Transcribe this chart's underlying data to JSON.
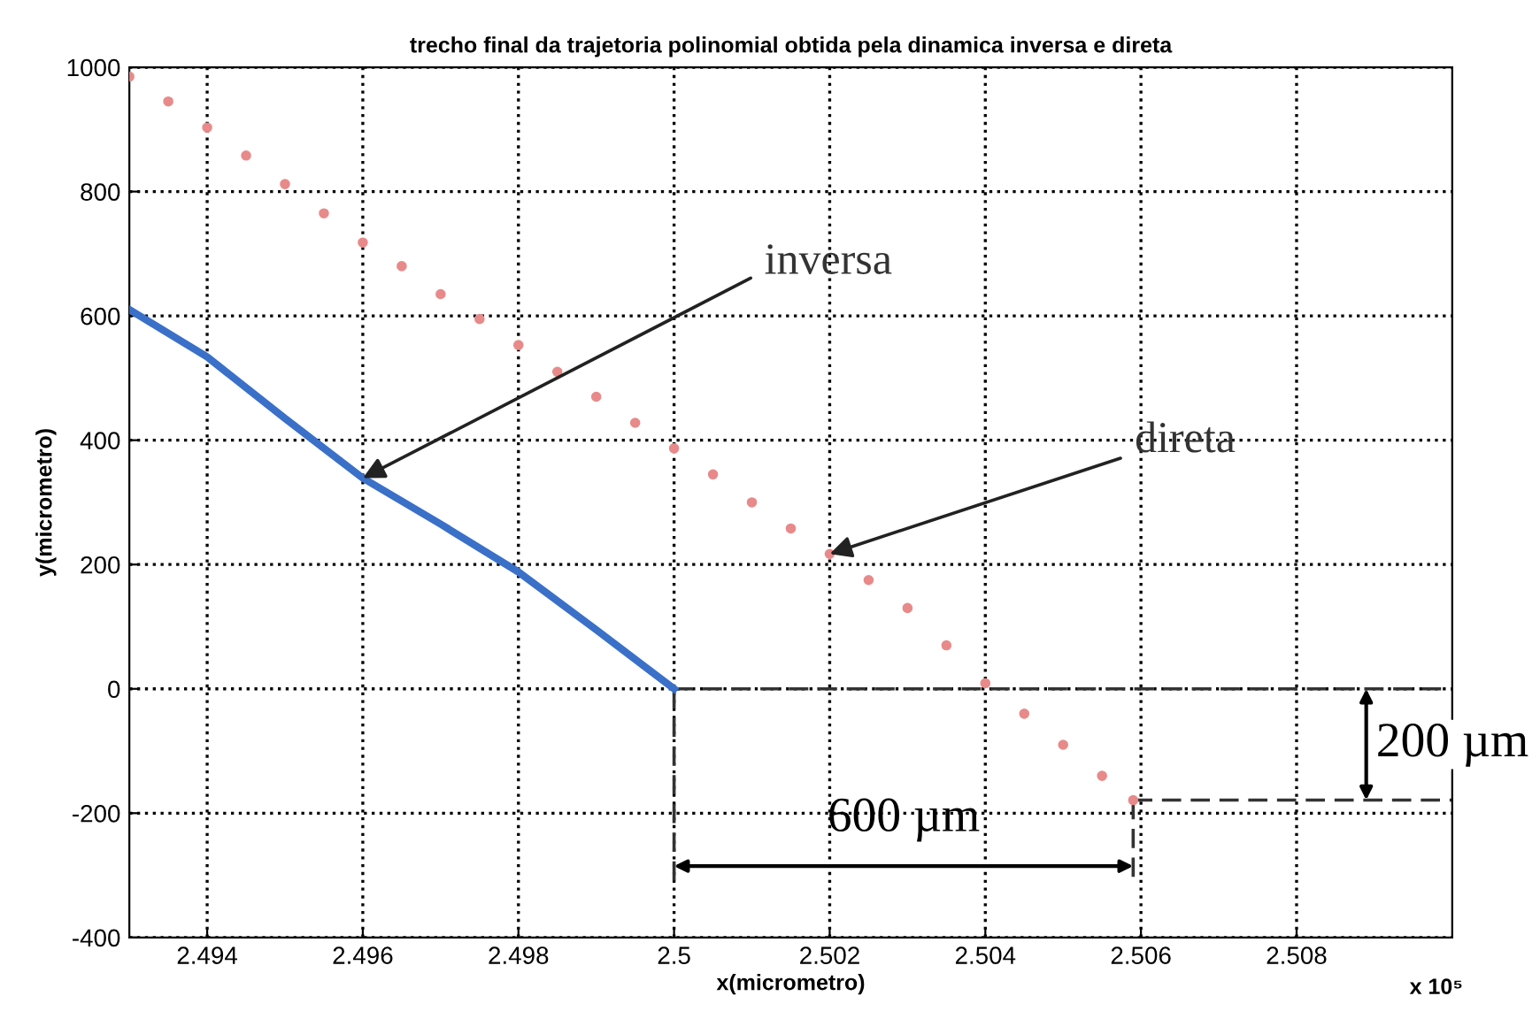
{
  "chart_data": {
    "type": "line",
    "title": "trecho final da trajetoria polinomial obtida pela dinamica inversa e direta",
    "xlabel": "x(micrometro)",
    "ylabel": "y(micrometro)",
    "xlim": [
      2.493,
      2.51
    ],
    "ylim": [
      -400,
      1000
    ],
    "xticks": [
      2.494,
      2.496,
      2.498,
      2.5,
      2.502,
      2.504,
      2.506,
      2.508
    ],
    "yticks": [
      -400,
      -200,
      0,
      200,
      400,
      600,
      800,
      1000
    ],
    "grid": true,
    "line_style": "solid",
    "series": [
      {
        "color": "#3a70c8",
        "x": [
          2.493,
          2.494,
          2.495,
          2.496,
          2.497,
          2.498,
          2.499,
          2.5
        ],
        "values": [
          610,
          534,
          435,
          339,
          265,
          188,
          95,
          0
        ]
      },
      {
        "type": "scatter",
        "color": "#e88a8a",
        "marker": "circle",
        "x": [
          2.493,
          2.4935,
          2.494,
          2.4945,
          2.495,
          2.4955,
          2.496,
          2.4965,
          2.497,
          2.4975,
          2.498,
          2.4985,
          2.499,
          2.4995,
          2.5,
          2.5005,
          2.501,
          2.5015,
          2.502,
          2.5025,
          2.503,
          2.5035,
          2.504,
          2.5045,
          2.505,
          2.5055,
          2.5059
        ],
        "values": [
          985,
          945,
          903,
          858,
          812,
          765,
          718,
          680,
          635,
          595,
          553,
          510,
          470,
          428,
          387,
          345,
          300,
          258,
          217,
          175,
          130,
          70,
          9,
          -40,
          -90,
          -140,
          -179
        ]
      }
    ],
    "annotations": [
      {
        "text": "inversa",
        "x": 2.496,
        "y": 339
      },
      {
        "text": "direta",
        "x": 2.502,
        "y": 217
      },
      "600 µm",
      {
        "text": "200 µm",
        "x": 2.5059,
        "y": -179
      },
      "x 10⁵"
    ]
  }
}
